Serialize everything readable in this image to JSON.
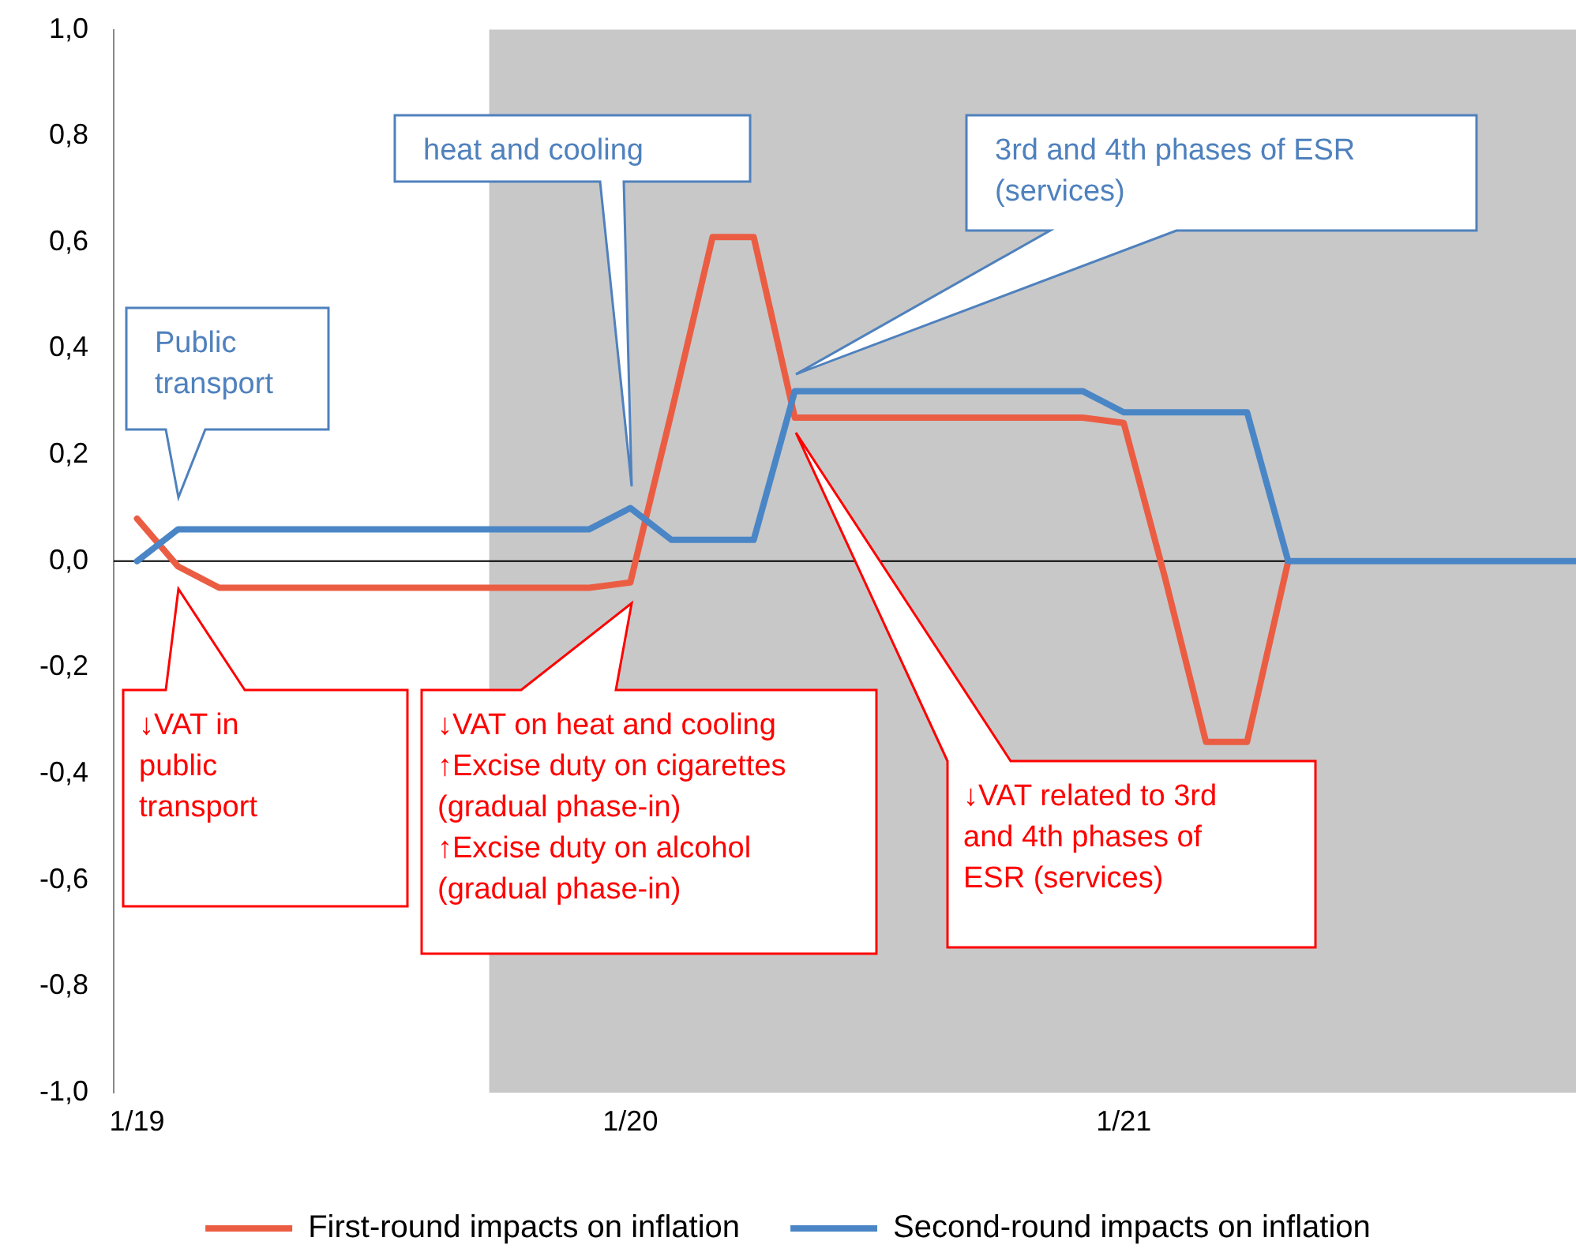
{
  "chart_data": {
    "type": "line",
    "x": [
      "2019-01",
      "2019-02",
      "2019-03",
      "2019-04",
      "2019-05",
      "2019-06",
      "2019-07",
      "2019-08",
      "2019-09",
      "2019-10",
      "2019-11",
      "2019-12",
      "2020-01",
      "2020-02",
      "2020-03",
      "2020-04",
      "2020-05",
      "2020-06",
      "2020-07",
      "2020-08",
      "2020-09",
      "2020-10",
      "2020-11",
      "2020-12",
      "2021-01",
      "2021-02",
      "2021-03",
      "2021-04",
      "2021-05",
      "2021-06",
      "2021-07",
      "2021-08",
      "2021-09",
      "2021-10",
      "2021-11",
      "2021-12"
    ],
    "series": [
      {
        "name": "First-round impacts on inflation",
        "color": "#eb5d43",
        "values": [
          0.08,
          -0.01,
          -0.05,
          -0.05,
          -0.05,
          -0.05,
          -0.05,
          -0.05,
          -0.05,
          -0.05,
          -0.05,
          -0.05,
          -0.04,
          0.28,
          0.61,
          0.61,
          0.27,
          0.27,
          0.27,
          0.27,
          0.27,
          0.27,
          0.27,
          0.27,
          0.26,
          -0.03,
          -0.34,
          -0.34,
          0,
          null,
          null,
          null,
          null,
          null,
          null,
          null
        ]
      },
      {
        "name": "Second-round impacts on inflation",
        "color": "#4a86c6",
        "values": [
          0,
          0.06,
          0.06,
          0.06,
          0.06,
          0.06,
          0.06,
          0.06,
          0.06,
          0.06,
          0.06,
          0.06,
          0.1,
          0.04,
          0.04,
          0.04,
          0.32,
          0.32,
          0.32,
          0.32,
          0.32,
          0.32,
          0.32,
          0.32,
          0.28,
          0.28,
          0.28,
          0.28,
          0,
          0,
          0,
          0,
          0,
          0,
          0,
          0
        ]
      }
    ],
    "xlim": [
      "2018-12-14",
      "2021-12-01"
    ],
    "xticks": [
      {
        "value": "2019-01",
        "label": "1/19"
      },
      {
        "value": "2020-01",
        "label": "1/20"
      },
      {
        "value": "2021-01",
        "label": "1/21"
      }
    ],
    "ylim": [
      -1,
      1
    ],
    "yticks": [
      {
        "value": -1,
        "label": "-1,0"
      },
      {
        "value": -0.8,
        "label": "-0,8"
      },
      {
        "value": -0.6,
        "label": "-0,6"
      },
      {
        "value": -0.4,
        "label": "-0,4"
      },
      {
        "value": -0.2,
        "label": "-0,2"
      },
      {
        "value": 0,
        "label": "0,0"
      },
      {
        "value": 0.2,
        "label": "0,2"
      },
      {
        "value": 0.4,
        "label": "0,4"
      },
      {
        "value": 0.6,
        "label": "0,6"
      },
      {
        "value": 0.8,
        "label": "0,8"
      },
      {
        "value": 1,
        "label": "1,0"
      }
    ],
    "bands": [
      {
        "axis": "x",
        "from": "2019-09-18",
        "to": "2021-12-01",
        "color": "#c8c8c8"
      }
    ],
    "annotations": [
      "Public\ntransport",
      "heat and cooling",
      "3rd and 4th phases of ESR\n(services)",
      "↓VAT in\npublic\ntransport",
      "↓VAT on heat and cooling\n↑Excise duty on cigarettes\n(gradual phase-in)\n↑Excise duty on alcohol\n(gradual phase-in)",
      "↓VAT related to 3rd\nand 4th phases of\nESR (services)"
    ],
    "ref_lines": [
      {
        "axis": "y",
        "value": 0,
        "color": "#000000"
      }
    ],
    "grid": false,
    "legend": "bottom",
    "marker": "none",
    "line_style": "solid"
  }
}
